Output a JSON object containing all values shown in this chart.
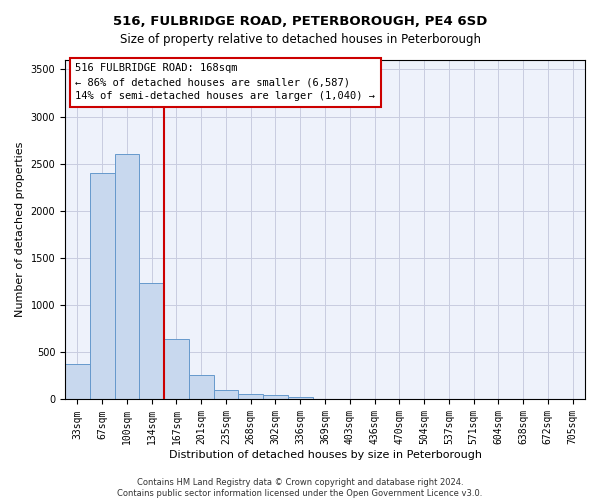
{
  "title": "516, FULBRIDGE ROAD, PETERBOROUGH, PE4 6SD",
  "subtitle": "Size of property relative to detached houses in Peterborough",
  "xlabel": "Distribution of detached houses by size in Peterborough",
  "ylabel": "Number of detached properties",
  "categories": [
    "33sqm",
    "67sqm",
    "100sqm",
    "134sqm",
    "167sqm",
    "201sqm",
    "235sqm",
    "268sqm",
    "302sqm",
    "336sqm",
    "369sqm",
    "403sqm",
    "436sqm",
    "470sqm",
    "504sqm",
    "537sqm",
    "571sqm",
    "604sqm",
    "638sqm",
    "672sqm",
    "705sqm"
  ],
  "values": [
    380,
    2400,
    2600,
    1240,
    640,
    260,
    100,
    60,
    50,
    30,
    0,
    0,
    0,
    0,
    0,
    0,
    0,
    0,
    0,
    0,
    0
  ],
  "bar_color": "#c8d8ee",
  "bar_edge_color": "#6699cc",
  "vline_x": 3.5,
  "vline_color": "#cc0000",
  "annotation_text": "516 FULBRIDGE ROAD: 168sqm\n← 86% of detached houses are smaller (6,587)\n14% of semi-detached houses are larger (1,040) →",
  "ylim": [
    0,
    3600
  ],
  "yticks": [
    0,
    500,
    1000,
    1500,
    2000,
    2500,
    3000,
    3500
  ],
  "footnote": "Contains HM Land Registry data © Crown copyright and database right 2024.\nContains public sector information licensed under the Open Government Licence v3.0.",
  "bg_color": "#eef2fb",
  "grid_color": "#c8cce0",
  "title_fontsize": 9.5,
  "subtitle_fontsize": 8.5,
  "xlabel_fontsize": 8,
  "ylabel_fontsize": 8,
  "tick_fontsize": 7,
  "annotation_fontsize": 7.5,
  "footnote_fontsize": 6
}
